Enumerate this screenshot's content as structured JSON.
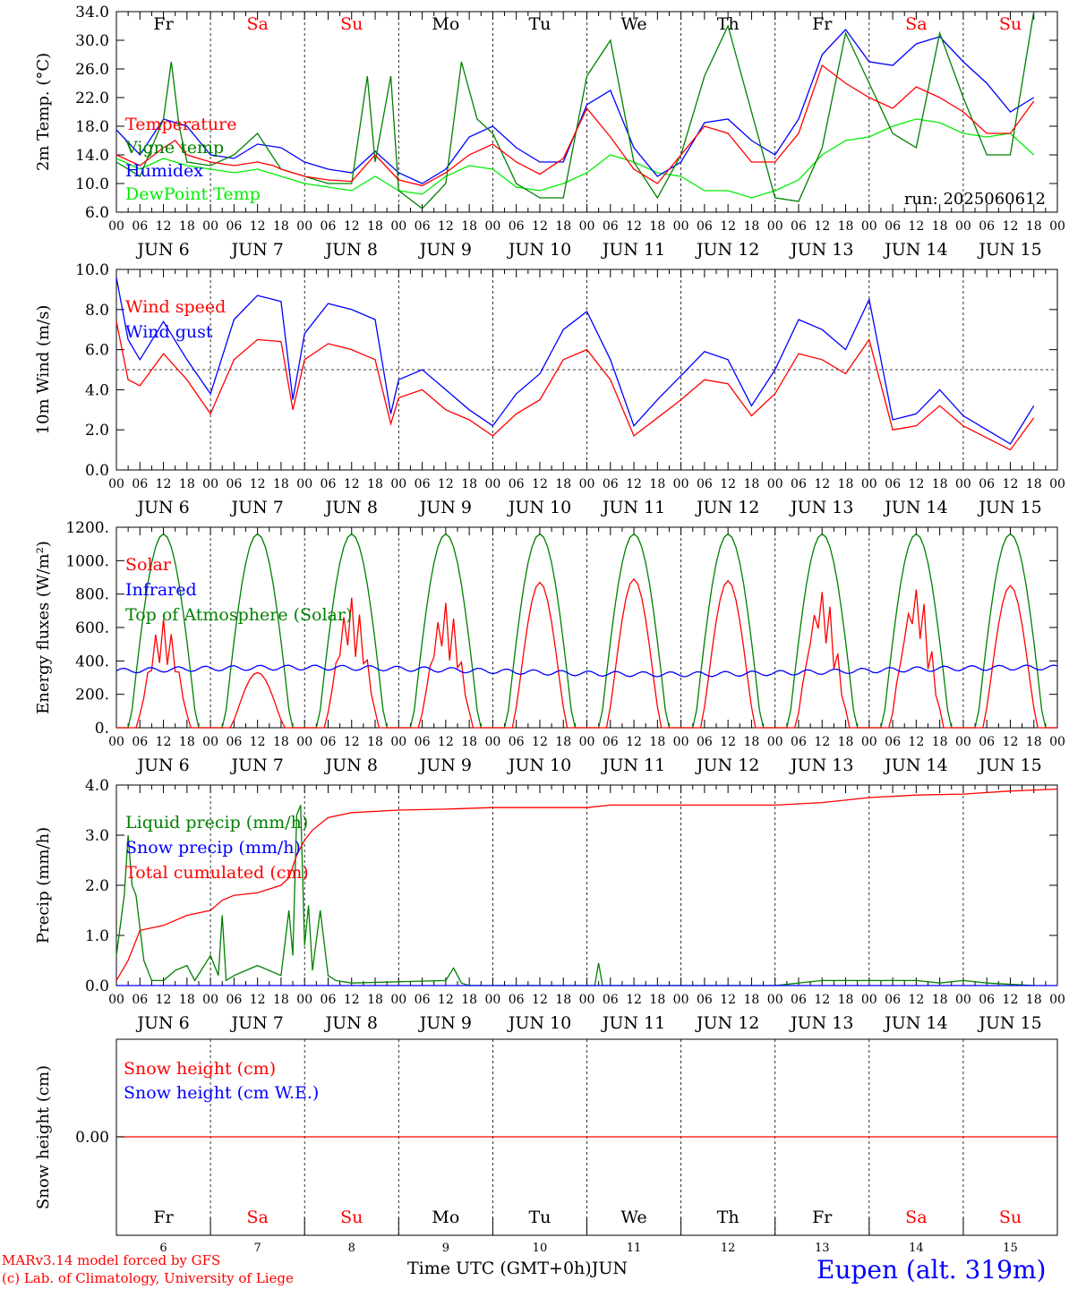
{
  "footer": {
    "model_line": "MARv3.14 model forced by GFS",
    "copyright_line": "(c) Lab. of Climatology, University of Liege",
    "time_axis_label": "Time UTC (GMT+0h)",
    "month_label": "JUN",
    "station": "Eupen (alt. 319m)"
  },
  "run_label": "run: 2025060612",
  "days": {
    "weekday_labels": [
      "Fr",
      "Sa",
      "Su",
      "Mo",
      "Tu",
      "We",
      "Th",
      "Fr",
      "Sa",
      "Su"
    ],
    "weekend_flags": [
      false,
      true,
      true,
      false,
      false,
      false,
      false,
      false,
      true,
      true
    ],
    "date_numbers": [
      "6",
      "7",
      "8",
      "9",
      "10",
      "11",
      "12",
      "13",
      "14",
      "15"
    ],
    "hour_labels": [
      "00",
      "06",
      "12",
      "18"
    ],
    "final_hour_label": "00",
    "date_labels": [
      "JUN 6",
      "JUN 7",
      "JUN 8",
      "JUN 9",
      "JUN 10",
      "JUN 11",
      "JUN 12",
      "JUN 13",
      "JUN 14",
      "JUN 15"
    ]
  },
  "colors": {
    "red": "#ff0000",
    "green": "#008000",
    "blue": "#0000ff",
    "lightgreen": "#00ee00",
    "weekend": "#ff0000",
    "weekday": "#000000"
  },
  "chart_data": [
    {
      "id": "temp",
      "type": "line",
      "ylabel": "2m Temp. (°C)",
      "ylim": [
        6,
        34
      ],
      "yticks": [
        "6.0",
        "10.0",
        "14.0",
        "18.0",
        "22.0",
        "26.0",
        "30.0",
        "34.0"
      ],
      "ytick_values": [
        6,
        10,
        14,
        18,
        22,
        26,
        30,
        34
      ],
      "x_unit": "hours since Jun 6 00 UTC",
      "series": [
        {
          "name": "Temperature",
          "color": "red",
          "x": [
            0,
            6,
            12,
            15,
            18,
            24,
            30,
            36,
            40,
            42,
            48,
            54,
            60,
            66,
            72,
            78,
            84,
            90,
            96,
            102,
            108,
            114,
            120,
            126,
            132,
            138,
            144,
            150,
            156,
            162,
            168,
            174,
            180,
            186,
            192,
            198,
            204,
            210,
            216,
            222,
            228,
            234
          ],
          "y": [
            14,
            12.5,
            15,
            16,
            14,
            13,
            12.5,
            13,
            12.5,
            12,
            11,
            10.5,
            10.3,
            14,
            10.5,
            9.7,
            11.5,
            14,
            15.5,
            13,
            11.3,
            13.5,
            20.5,
            16.5,
            12,
            10,
            14,
            18,
            17,
            13,
            13,
            17,
            26.5,
            24,
            22,
            20.5,
            23.5,
            22,
            20,
            17,
            17,
            21.5
          ]
        },
        {
          "name": "Vigne temp",
          "color": "green",
          "x": [
            0,
            6,
            12,
            14,
            16,
            18,
            24,
            30,
            36,
            42,
            48,
            54,
            60,
            64,
            66,
            70,
            72,
            78,
            84,
            88,
            92,
            96,
            102,
            108,
            114,
            120,
            126,
            132,
            138,
            144,
            150,
            156,
            162,
            168,
            174,
            180,
            186,
            192,
            198,
            204,
            210,
            216,
            222,
            228,
            234
          ],
          "y": [
            13,
            11,
            19,
            27,
            18,
            13,
            12.5,
            14,
            17,
            12,
            11,
            10,
            10,
            25,
            13,
            25,
            9,
            6.5,
            10,
            27,
            19,
            17,
            10,
            8,
            8,
            25,
            30,
            13,
            8,
            14,
            25,
            32,
            20,
            8,
            7.5,
            15,
            31,
            24,
            17,
            15,
            31,
            22,
            14,
            14,
            34
          ]
        },
        {
          "name": "Humidex",
          "color": "blue",
          "x": [
            0,
            6,
            12,
            18,
            24,
            30,
            36,
            42,
            48,
            54,
            60,
            66,
            72,
            78,
            84,
            90,
            96,
            102,
            108,
            114,
            120,
            126,
            132,
            138,
            144,
            150,
            156,
            162,
            168,
            174,
            180,
            186,
            192,
            198,
            204,
            210,
            216,
            222,
            228,
            234
          ],
          "y": [
            17.5,
            14,
            19,
            18,
            14,
            13.5,
            15.5,
            15,
            13,
            12,
            11.5,
            14.5,
            11.5,
            10,
            12,
            16.5,
            18,
            15,
            13,
            13,
            21,
            23,
            15,
            11,
            13,
            18.5,
            19,
            16,
            14,
            19,
            28,
            31.5,
            27,
            26.5,
            29.5,
            30.5,
            27,
            24,
            20,
            22
          ]
        },
        {
          "name": "DewPoint Temp",
          "color": "lightgreen",
          "x": [
            0,
            6,
            12,
            18,
            24,
            30,
            36,
            42,
            48,
            54,
            60,
            66,
            72,
            78,
            84,
            90,
            96,
            102,
            108,
            114,
            120,
            126,
            132,
            138,
            144,
            150,
            156,
            162,
            168,
            174,
            180,
            186,
            192,
            198,
            204,
            210,
            216,
            222,
            228,
            234
          ],
          "y": [
            13.5,
            12,
            13.5,
            12.5,
            12,
            11.5,
            12,
            11,
            10,
            9.5,
            9,
            11,
            9,
            8.5,
            11,
            12.5,
            12,
            9.5,
            9,
            10,
            11.5,
            14,
            13,
            11.5,
            11,
            9,
            9,
            8,
            9,
            10.5,
            14,
            16,
            16.5,
            18,
            19,
            18.5,
            17,
            16.5,
            17,
            14
          ]
        }
      ]
    },
    {
      "id": "wind",
      "type": "line",
      "ylabel": "10m Wind (m/s)",
      "ylim": [
        0,
        10
      ],
      "yticks": [
        "0.0",
        "2.0",
        "4.0",
        "6.0",
        "8.0",
        "10.0"
      ],
      "ytick_values": [
        0,
        2,
        4,
        6,
        8,
        10
      ],
      "reference_line": 5,
      "x_unit": "hours since Jun 6 00 UTC",
      "series": [
        {
          "name": "Wind speed",
          "color": "red",
          "x": [
            0,
            3,
            6,
            12,
            18,
            24,
            30,
            36,
            42,
            45,
            48,
            54,
            60,
            66,
            70,
            72,
            78,
            84,
            90,
            96,
            102,
            108,
            114,
            120,
            126,
            132,
            138,
            144,
            150,
            156,
            162,
            168,
            174,
            180,
            186,
            192,
            198,
            204,
            210,
            216,
            222,
            228,
            234
          ],
          "y": [
            7.4,
            4.5,
            4.2,
            5.8,
            4.5,
            2.8,
            5.5,
            6.5,
            6.4,
            3,
            5.5,
            6.3,
            6,
            5.5,
            2.3,
            3.6,
            4.0,
            3.0,
            2.5,
            1.7,
            2.8,
            3.5,
            5.5,
            6.0,
            4.5,
            1.7,
            2.6,
            3.5,
            4.5,
            4.3,
            2.7,
            3.8,
            5.8,
            5.5,
            4.8,
            6.5,
            2.0,
            2.2,
            3.2,
            2.2,
            1.6,
            1.0,
            2.6
          ]
        },
        {
          "name": "Wind gust",
          "color": "blue",
          "x": [
            0,
            3,
            6,
            12,
            18,
            24,
            30,
            36,
            42,
            45,
            48,
            54,
            60,
            66,
            70,
            72,
            78,
            84,
            90,
            96,
            102,
            108,
            114,
            120,
            126,
            132,
            138,
            144,
            150,
            156,
            162,
            168,
            174,
            180,
            186,
            192,
            198,
            204,
            210,
            216,
            222,
            228,
            234
          ],
          "y": [
            9.6,
            6.5,
            5.5,
            7.4,
            5.5,
            3.8,
            7.5,
            8.7,
            8.4,
            3.5,
            6.8,
            8.3,
            8.0,
            7.5,
            2.8,
            4.5,
            5.0,
            4.0,
            3.0,
            2.2,
            3.8,
            4.8,
            7.0,
            7.9,
            5.5,
            2.2,
            3.5,
            4.7,
            5.9,
            5.5,
            3.2,
            5.0,
            7.5,
            7.0,
            6.0,
            8.5,
            2.5,
            2.8,
            4.0,
            2.7,
            2.0,
            1.3,
            3.2
          ]
        }
      ]
    },
    {
      "id": "energy",
      "type": "line",
      "ylabel": "Energy fluxes (W/m²)",
      "ylim": [
        0,
        1200
      ],
      "yticks": [
        "0.",
        "200.",
        "400.",
        "600.",
        "800.",
        "1000.",
        "1200."
      ],
      "ytick_values": [
        0,
        200,
        400,
        600,
        800,
        1000,
        1200
      ],
      "x_unit": "hours since Jun 6 00 UTC",
      "toa_peak": 1160,
      "solar_daily_peaks": [
        650,
        330,
        780,
        750,
        870,
        890,
        880,
        830,
        850,
        850
      ],
      "infrared_level": 340,
      "series": [
        {
          "name": "Solar",
          "color": "red"
        },
        {
          "name": "Infrared",
          "color": "blue"
        },
        {
          "name": "Top of Atmosphere (Solar)",
          "color": "green"
        }
      ]
    },
    {
      "id": "precip",
      "type": "line",
      "ylabel": "Precip (mm/h)",
      "ylim": [
        0,
        4
      ],
      "yticks": [
        "0.0",
        "1.0",
        "2.0",
        "3.0",
        "4.0"
      ],
      "ytick_values": [
        0,
        1,
        2,
        3,
        4
      ],
      "x_unit": "hours since Jun 6 00 UTC",
      "series": [
        {
          "name": "Liquid precip (mm/h)",
          "color": "green",
          "x": [
            0,
            2,
            3,
            4,
            5,
            7,
            9,
            12,
            15,
            18,
            20,
            24,
            26,
            27,
            28,
            30,
            36,
            42,
            44,
            45,
            46,
            47,
            48,
            49,
            50,
            52,
            54,
            56,
            60,
            84,
            86,
            88,
            90,
            120,
            122,
            123,
            124,
            168,
            180,
            204,
            210,
            216,
            222,
            234
          ],
          "y": [
            0.6,
            1.8,
            3.0,
            2.0,
            1.8,
            0.5,
            0.1,
            0.1,
            0.3,
            0.4,
            0.1,
            0.6,
            0.2,
            1.4,
            0.1,
            0.2,
            0.4,
            0.2,
            1.5,
            0.6,
            3.4,
            3.6,
            0.8,
            1.6,
            0.3,
            1.5,
            0.2,
            0.1,
            0.05,
            0.1,
            0.35,
            0.05,
            0.0,
            0.0,
            0.0,
            0.45,
            0.0,
            0.0,
            0.1,
            0.1,
            0.05,
            0.1,
            0.05,
            0.0
          ]
        },
        {
          "name": "Snow precip (mm/h)",
          "color": "blue",
          "x": [
            0,
            240
          ],
          "y": [
            0,
            0
          ]
        },
        {
          "name": "Total cumulated (cm)",
          "color": "red",
          "x": [
            0,
            3,
            6,
            12,
            18,
            24,
            27,
            30,
            36,
            42,
            44,
            46,
            48,
            50,
            54,
            60,
            72,
            84,
            96,
            108,
            120,
            126,
            132,
            144,
            156,
            168,
            180,
            192,
            204,
            216,
            228,
            240
          ],
          "y": [
            0.1,
            0.5,
            1.1,
            1.2,
            1.4,
            1.5,
            1.7,
            1.8,
            1.85,
            2.0,
            2.15,
            2.6,
            2.9,
            3.1,
            3.35,
            3.45,
            3.5,
            3.52,
            3.55,
            3.55,
            3.55,
            3.6,
            3.6,
            3.6,
            3.6,
            3.6,
            3.65,
            3.75,
            3.8,
            3.82,
            3.88,
            3.92
          ]
        }
      ]
    },
    {
      "id": "snow",
      "type": "line",
      "ylabel": "Snow height (cm)",
      "yticks": [
        "0.00"
      ],
      "x_unit": "hours since Jun 6 00 UTC",
      "series": [
        {
          "name": "Snow height (cm)",
          "color": "red",
          "x": [
            0,
            240
          ],
          "y": [
            0,
            0
          ]
        },
        {
          "name": "Snow height (cm W.E.)",
          "color": "blue",
          "x": [
            0,
            240
          ],
          "y": [
            0,
            0
          ]
        }
      ]
    }
  ]
}
